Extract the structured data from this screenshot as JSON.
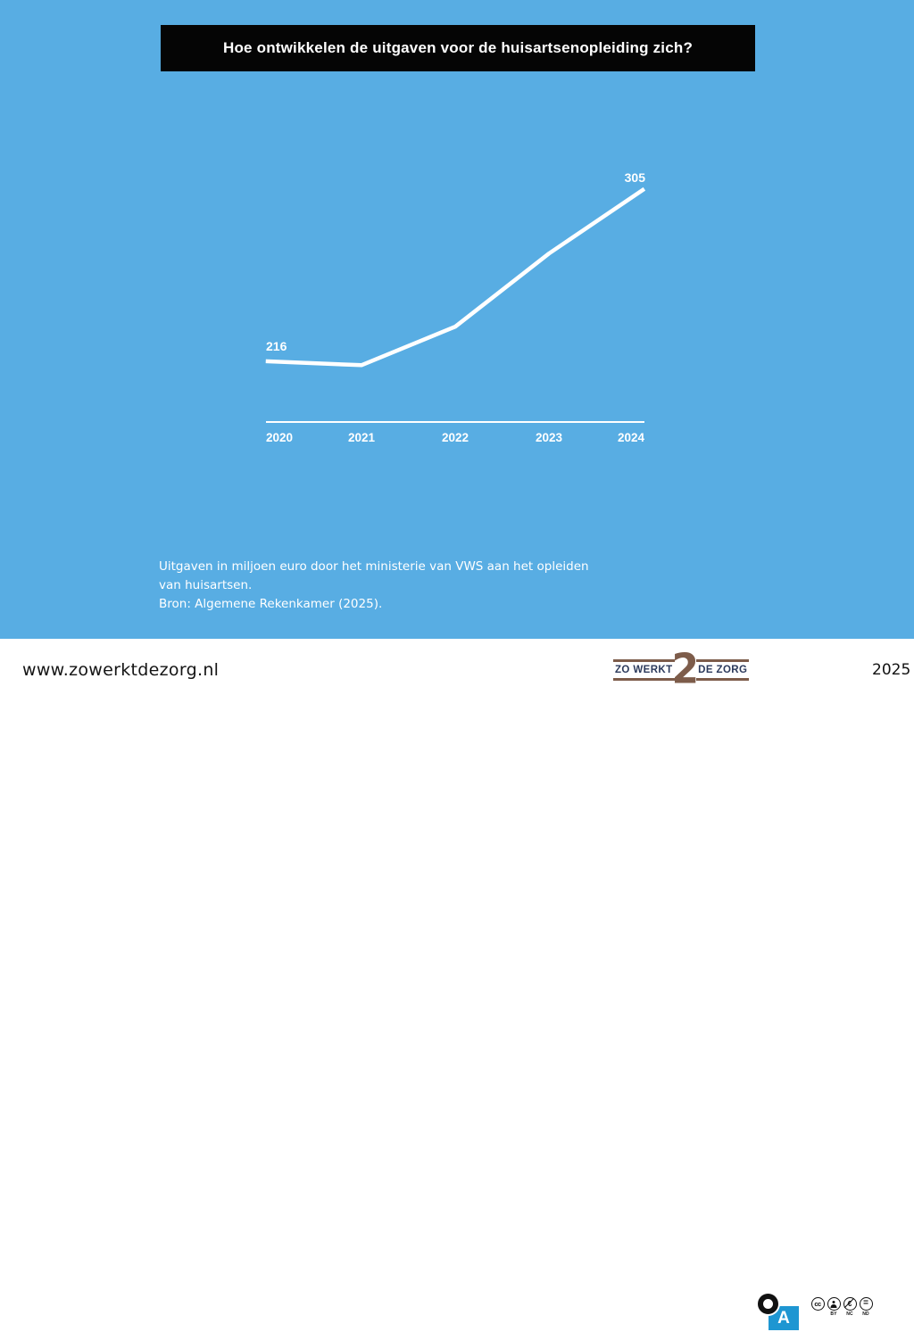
{
  "page": {
    "background_color": "#58ADE3",
    "accent_black": "#050505",
    "white": "#FFFFFF"
  },
  "title": {
    "text": "Hoe ontwikkelen de uitgaven voor de huisartsenopleiding zich?"
  },
  "chart_data": {
    "type": "line",
    "categories": [
      "2020",
      "2021",
      "2022",
      "2023",
      "2024"
    ],
    "series": [
      {
        "values": [
          216,
          214,
          234,
          272,
          305
        ],
        "color": "#FFFFFF"
      }
    ],
    "labeled_point_indices": [
      0,
      4
    ],
    "point_label_values": [
      "216",
      "305"
    ],
    "title": "",
    "xlabel": "",
    "ylabel": "",
    "ylim": [
      205,
      315
    ],
    "grid": false,
    "legend_position": "none",
    "axis_color": "#FFFFFF",
    "text_color": "#FFFFFF"
  },
  "caption": {
    "lines": [
      "Uitgaven in miljoen euro door het ministerie van VWS aan het opleiden",
      "van huisartsen.",
      "Bron: Algemene Rekenkamer (2025)."
    ]
  },
  "footer": {
    "website": "www.zowerktdezorg.nl",
    "logo": {
      "left_text": "ZO WERKT",
      "numeral": "2",
      "right_text": "DE ZORG"
    },
    "maker_mark_letter": "A",
    "license": {
      "cc_label": "cc",
      "by_label": "BY",
      "nc_label": "NC",
      "nd_label": "ND",
      "nc_symbol": "€",
      "nd_symbol": "="
    },
    "year": "2025"
  }
}
